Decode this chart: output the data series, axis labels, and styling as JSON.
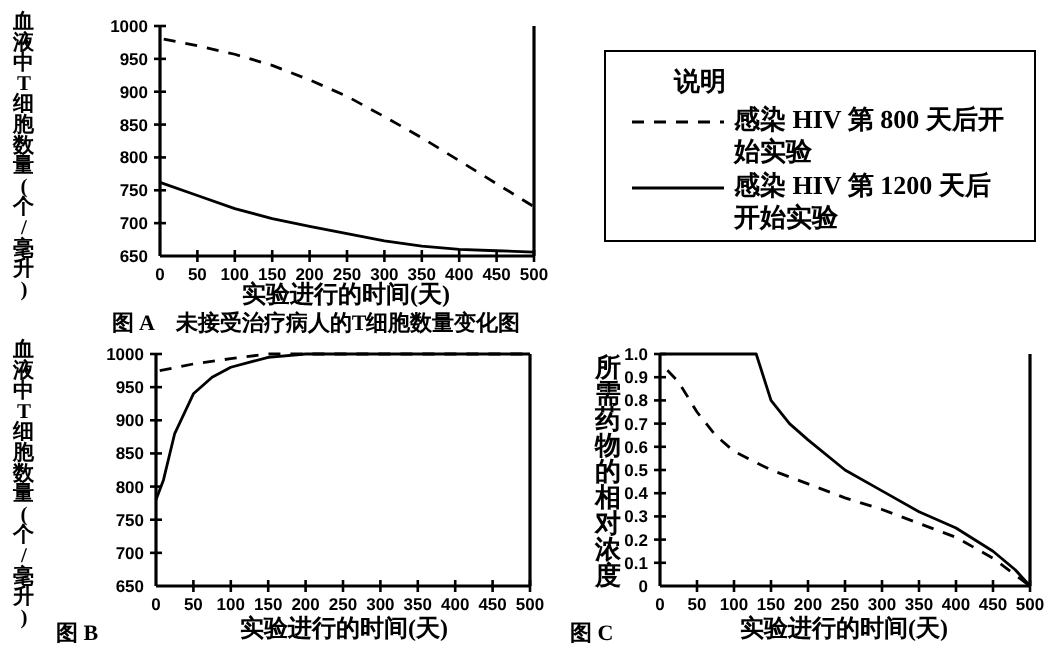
{
  "chart_data": [
    {
      "type": "line",
      "title": "图 A　未接受治疗病人的T细胞数量变化图",
      "xlabel": "实验进行的时间(天)",
      "ylabel": "血液中T细胞数量(个/毫升)",
      "legend_title": "说明",
      "legend": "right",
      "xlim": [
        0,
        500
      ],
      "xticks": [
        0,
        50,
        100,
        150,
        200,
        250,
        300,
        350,
        400,
        450,
        500
      ],
      "ylim": [
        650,
        1000
      ],
      "yticks": [
        650,
        700,
        750,
        800,
        850,
        900,
        950,
        1000
      ],
      "series": [
        {
          "name": "感染 HIV 第 800 天后开始实验",
          "color": "#000000",
          "line_style": "dashed",
          "x": [
            5,
            50,
            100,
            150,
            200,
            250,
            300,
            350,
            400,
            450,
            500
          ],
          "values": [
            980,
            970,
            957,
            940,
            918,
            893,
            862,
            830,
            795,
            760,
            725
          ]
        },
        {
          "name": "感染 HIV 第 1200 天后开始实验",
          "color": "#000000",
          "line_style": "solid",
          "x": [
            0,
            50,
            100,
            150,
            200,
            250,
            300,
            350,
            400,
            450,
            500
          ],
          "values": [
            762,
            742,
            722,
            707,
            695,
            684,
            673,
            665,
            660,
            658,
            656
          ]
        }
      ]
    },
    {
      "type": "line",
      "title": "图 B",
      "xlabel": "实验进行的时间(天)",
      "ylabel": "血液中T细胞数量(个/毫升)",
      "xlim": [
        0,
        500
      ],
      "xticks": [
        0,
        50,
        100,
        150,
        200,
        250,
        300,
        350,
        400,
        450,
        500
      ],
      "ylim": [
        650,
        1000
      ],
      "yticks": [
        650,
        700,
        750,
        800,
        850,
        900,
        950,
        1000
      ],
      "series": [
        {
          "color": "#000000",
          "line_style": "dashed",
          "x": [
            5,
            50,
            100,
            150,
            200,
            300,
            400,
            500
          ],
          "values": [
            975,
            985,
            993,
            1000,
            1000,
            1000,
            1000,
            1000
          ]
        },
        {
          "color": "#000000",
          "line_style": "solid",
          "x": [
            0,
            10,
            25,
            50,
            75,
            100,
            150,
            200,
            300,
            400,
            500
          ],
          "values": [
            780,
            810,
            880,
            940,
            965,
            980,
            995,
            1000,
            1000,
            1000,
            1000
          ]
        }
      ]
    },
    {
      "type": "line",
      "title": "图 C",
      "xlabel": "实验进行的时间(天)",
      "ylabel": "所需药物的相对浓度",
      "xlim": [
        0,
        500
      ],
      "xticks": [
        0,
        50,
        100,
        150,
        200,
        250,
        300,
        350,
        400,
        450,
        500
      ],
      "ylim": [
        0,
        1
      ],
      "yticks": [
        0,
        0.1,
        0.2,
        0.3,
        0.4,
        0.5,
        0.6,
        0.7,
        0.8,
        0.9,
        {
          "value": 1,
          "label": "1.0"
        }
      ],
      "series": [
        {
          "color": "#000000",
          "line_style": "dashed",
          "x": [
            10,
            25,
            50,
            75,
            100,
            150,
            200,
            250,
            300,
            350,
            400,
            450,
            500
          ],
          "values": [
            0.93,
            0.88,
            0.75,
            0.65,
            0.58,
            0.5,
            0.44,
            0.38,
            0.33,
            0.27,
            0.21,
            0.12,
            0
          ]
        },
        {
          "color": "#000000",
          "line_style": "solid",
          "x": [
            0,
            130,
            150,
            175,
            200,
            250,
            300,
            350,
            400,
            450,
            480,
            500
          ],
          "values": [
            1,
            1,
            0.8,
            0.7,
            0.63,
            0.5,
            0.41,
            0.32,
            0.25,
            0.15,
            0.07,
            0
          ]
        }
      ]
    }
  ]
}
